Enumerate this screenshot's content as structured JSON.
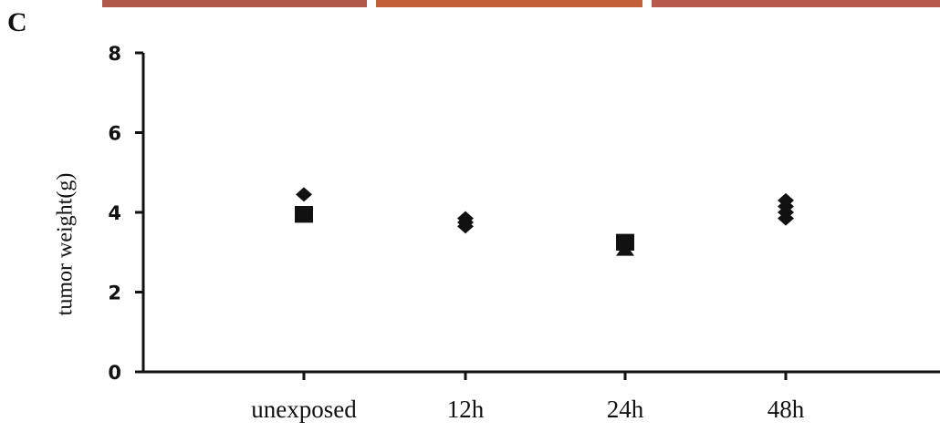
{
  "panel_label": "C",
  "chart_data": {
    "type": "scatter",
    "title": "",
    "xlabel": "",
    "ylabel": "tumor weight(g)",
    "categories": [
      "unexposed",
      "12h",
      "24h",
      "48h"
    ],
    "ylim": [
      0,
      8
    ],
    "yticks": [
      0,
      2,
      4,
      6,
      8
    ],
    "grid": false,
    "legend": "none",
    "points": [
      {
        "category": "unexposed",
        "y": 4.45,
        "marker": "diamond"
      },
      {
        "category": "unexposed",
        "y": 4.0,
        "marker": "square"
      },
      {
        "category": "unexposed",
        "y": 3.9,
        "marker": "square"
      },
      {
        "category": "12h",
        "y": 3.85,
        "marker": "diamond"
      },
      {
        "category": "12h",
        "y": 3.75,
        "marker": "diamond"
      },
      {
        "category": "12h",
        "y": 3.65,
        "marker": "diamond"
      },
      {
        "category": "24h",
        "y": 3.3,
        "marker": "square"
      },
      {
        "category": "24h",
        "y": 3.2,
        "marker": "square"
      },
      {
        "category": "24h",
        "y": 3.05,
        "marker": "triangle"
      },
      {
        "category": "48h",
        "y": 4.3,
        "marker": "diamond"
      },
      {
        "category": "48h",
        "y": 4.15,
        "marker": "diamond"
      },
      {
        "category": "48h",
        "y": 4.0,
        "marker": "diamond"
      },
      {
        "category": "48h",
        "y": 3.85,
        "marker": "diamond"
      }
    ],
    "marker_color": "#111111",
    "background_strip_colors": [
      "#b0584a",
      "#c2603a",
      "#b8594d"
    ]
  }
}
